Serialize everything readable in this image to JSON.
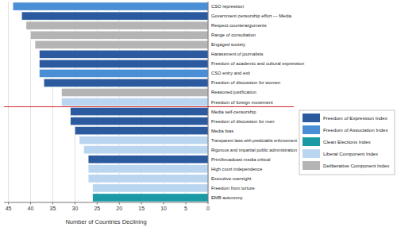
{
  "chart_data": {
    "type": "bar",
    "orientation": "horizontal",
    "x_label": "Number of Countries Declining",
    "categories": [
      "CSO repression",
      "Government censorship effort — Media",
      "Respect counterarguments",
      "Range of consultation",
      "Engaged society",
      "Harassment of journalists",
      "Freedom of academic and cultural expression",
      "CSO entry and exit",
      "Freedom of discussion for women",
      "Reasoned justification",
      "Freedom of foreign movement",
      "Media self-censorship",
      "Freedom of discussion for men",
      "Media bias",
      "Transparent laws with predictable enforcement",
      "Rigorous and impartial public administration",
      "Print/broadcast media critical",
      "High court independence",
      "Executive oversight",
      "Freedom from torture",
      "EMB autonomy"
    ],
    "series": [
      {
        "name": "Freedom of Expression Index",
        "color": "#2b5a9e",
        "values": [
          null,
          42,
          null,
          null,
          null,
          38,
          38,
          null,
          37,
          null,
          null,
          31,
          31,
          30,
          null,
          null,
          27,
          null,
          null,
          null,
          null
        ]
      },
      {
        "name": "Freedom of Association Index",
        "color": "#4a8fd6",
        "values": [
          44,
          null,
          null,
          null,
          null,
          null,
          null,
          38,
          null,
          null,
          null,
          null,
          null,
          null,
          null,
          null,
          null,
          null,
          null,
          null,
          null
        ]
      },
      {
        "name": "Clean Elections Index",
        "color": "#1b9aa6",
        "values": [
          null,
          null,
          null,
          null,
          null,
          null,
          null,
          null,
          null,
          null,
          null,
          null,
          null,
          null,
          null,
          null,
          null,
          null,
          null,
          null,
          26
        ]
      },
      {
        "name": "Liberal Component Index",
        "color": "#b9d5ef",
        "values": [
          null,
          null,
          null,
          null,
          null,
          null,
          null,
          null,
          null,
          null,
          33,
          null,
          null,
          null,
          29,
          28,
          null,
          27,
          27,
          26,
          null
        ]
      },
      {
        "name": "Deliberative Component Index",
        "color": "#b4b4b4",
        "values": [
          null,
          null,
          41,
          40,
          39,
          null,
          null,
          null,
          null,
          33,
          null,
          null,
          null,
          null,
          null,
          null,
          null,
          null,
          null,
          null,
          null
        ]
      }
    ],
    "xlim": [
      0,
      46
    ],
    "xticks": [
      0,
      5,
      10,
      15,
      20,
      25,
      30,
      35,
      40,
      45
    ],
    "grid": true,
    "legend": "right"
  }
}
